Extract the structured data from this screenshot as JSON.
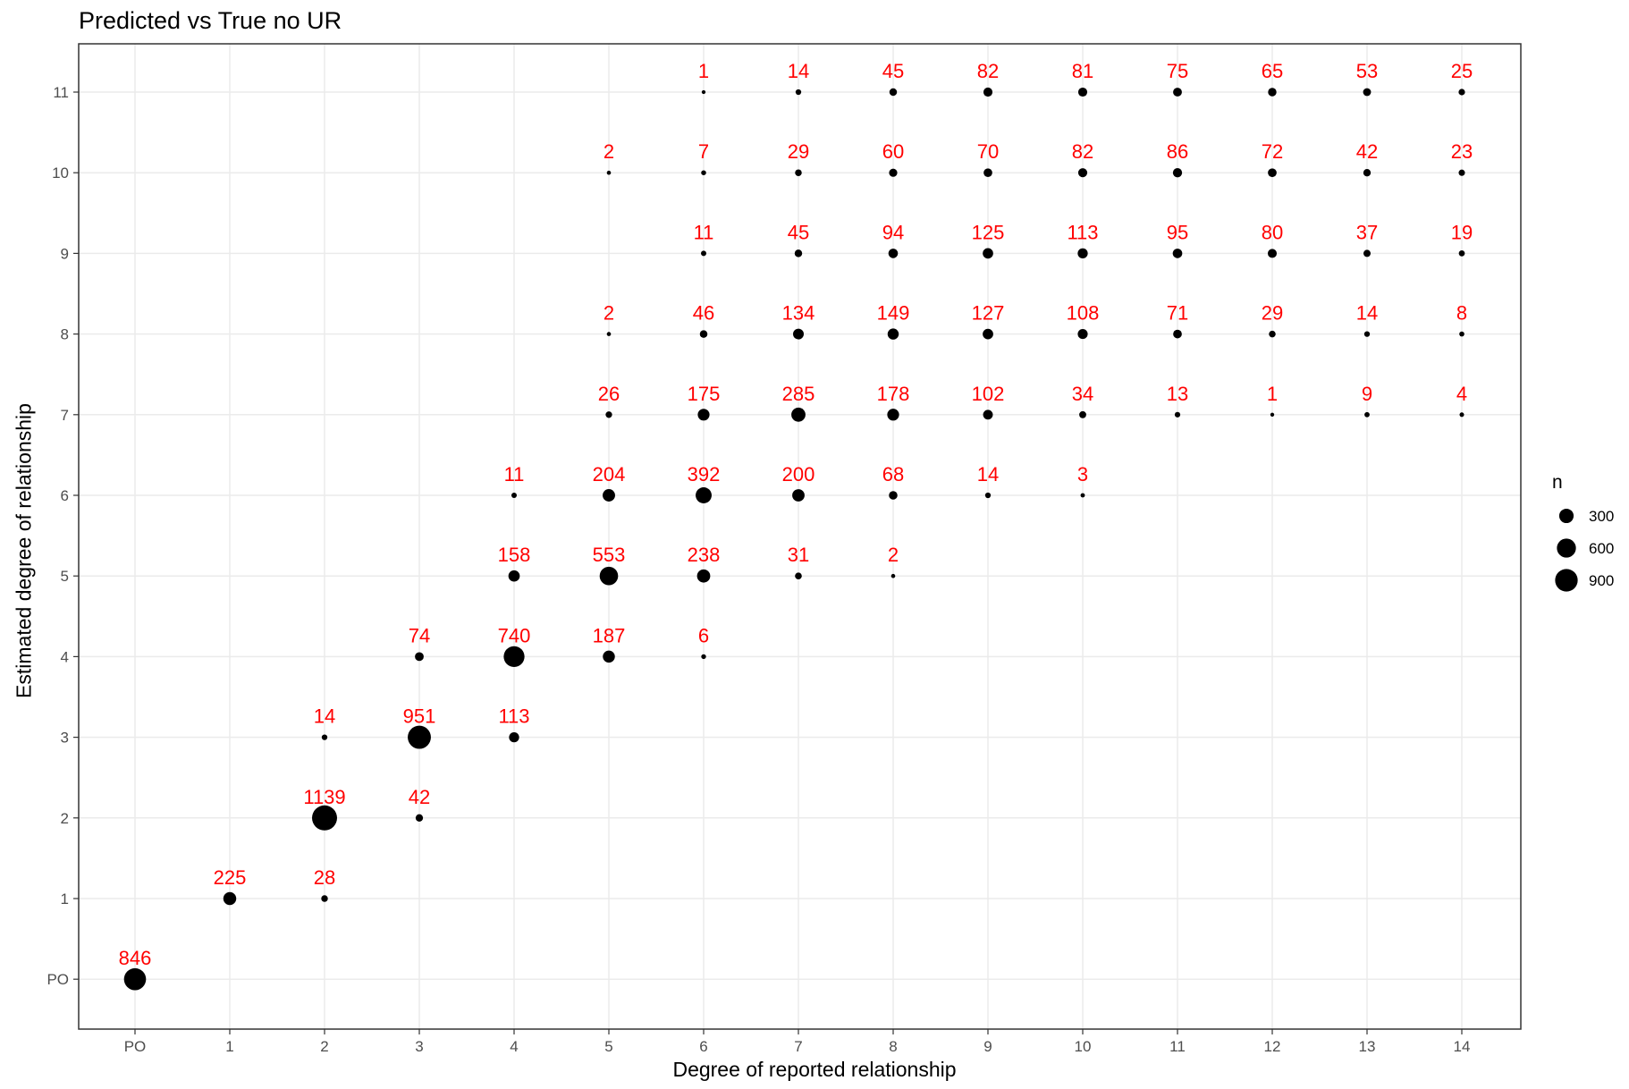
{
  "chart_data": {
    "type": "scatter",
    "title": "Predicted vs True no UR",
    "xlabel": "Degree of reported relationship",
    "ylabel": "Estimated degree of relationship",
    "x_categories": [
      "PO",
      "1",
      "2",
      "3",
      "4",
      "5",
      "6",
      "7",
      "8",
      "9",
      "10",
      "11",
      "12",
      "13",
      "14"
    ],
    "y_categories": [
      "PO",
      "1",
      "2",
      "3",
      "4",
      "5",
      "6",
      "7",
      "8",
      "9",
      "10",
      "11"
    ],
    "point_color": "#000000",
    "label_color": "#FF0000",
    "grid": true,
    "legend": {
      "title": "n",
      "position": "right",
      "entries": [
        {
          "value": 300,
          "label": "300"
        },
        {
          "value": 600,
          "label": "600"
        },
        {
          "value": 900,
          "label": "900"
        }
      ]
    },
    "points": [
      {
        "x": "PO",
        "y": "PO",
        "n": 846
      },
      {
        "x": "1",
        "y": "1",
        "n": 225
      },
      {
        "x": "2",
        "y": "1",
        "n": 28
      },
      {
        "x": "2",
        "y": "2",
        "n": 1139
      },
      {
        "x": "2",
        "y": "3",
        "n": 14
      },
      {
        "x": "3",
        "y": "2",
        "n": 42
      },
      {
        "x": "3",
        "y": "3",
        "n": 951
      },
      {
        "x": "3",
        "y": "4",
        "n": 74
      },
      {
        "x": "4",
        "y": "3",
        "n": 113
      },
      {
        "x": "4",
        "y": "4",
        "n": 740
      },
      {
        "x": "4",
        "y": "5",
        "n": 158
      },
      {
        "x": "4",
        "y": "6",
        "n": 11
      },
      {
        "x": "5",
        "y": "4",
        "n": 187
      },
      {
        "x": "5",
        "y": "5",
        "n": 553
      },
      {
        "x": "5",
        "y": "6",
        "n": 204
      },
      {
        "x": "5",
        "y": "7",
        "n": 26
      },
      {
        "x": "5",
        "y": "8",
        "n": 2
      },
      {
        "x": "5",
        "y": "10",
        "n": 2
      },
      {
        "x": "6",
        "y": "4",
        "n": 6
      },
      {
        "x": "6",
        "y": "5",
        "n": 238
      },
      {
        "x": "6",
        "y": "6",
        "n": 392
      },
      {
        "x": "6",
        "y": "7",
        "n": 175
      },
      {
        "x": "6",
        "y": "8",
        "n": 46
      },
      {
        "x": "6",
        "y": "9",
        "n": 11
      },
      {
        "x": "6",
        "y": "10",
        "n": 7
      },
      {
        "x": "6",
        "y": "11",
        "n": 1
      },
      {
        "x": "7",
        "y": "5",
        "n": 31
      },
      {
        "x": "7",
        "y": "6",
        "n": 200
      },
      {
        "x": "7",
        "y": "7",
        "n": 285
      },
      {
        "x": "7",
        "y": "8",
        "n": 134
      },
      {
        "x": "7",
        "y": "9",
        "n": 45
      },
      {
        "x": "7",
        "y": "10",
        "n": 29
      },
      {
        "x": "7",
        "y": "11",
        "n": 14
      },
      {
        "x": "8",
        "y": "5",
        "n": 2
      },
      {
        "x": "8",
        "y": "6",
        "n": 68
      },
      {
        "x": "8",
        "y": "7",
        "n": 178
      },
      {
        "x": "8",
        "y": "8",
        "n": 149
      },
      {
        "x": "8",
        "y": "9",
        "n": 94
      },
      {
        "x": "8",
        "y": "10",
        "n": 60
      },
      {
        "x": "8",
        "y": "11",
        "n": 45
      },
      {
        "x": "9",
        "y": "6",
        "n": 14
      },
      {
        "x": "9",
        "y": "7",
        "n": 102
      },
      {
        "x": "9",
        "y": "8",
        "n": 127
      },
      {
        "x": "9",
        "y": "9",
        "n": 125
      },
      {
        "x": "9",
        "y": "10",
        "n": 70
      },
      {
        "x": "9",
        "y": "11",
        "n": 82
      },
      {
        "x": "10",
        "y": "6",
        "n": 3
      },
      {
        "x": "10",
        "y": "7",
        "n": 34
      },
      {
        "x": "10",
        "y": "8",
        "n": 108
      },
      {
        "x": "10",
        "y": "9",
        "n": 113
      },
      {
        "x": "10",
        "y": "10",
        "n": 82
      },
      {
        "x": "10",
        "y": "11",
        "n": 81
      },
      {
        "x": "11",
        "y": "7",
        "n": 13
      },
      {
        "x": "11",
        "y": "8",
        "n": 71
      },
      {
        "x": "11",
        "y": "9",
        "n": 95
      },
      {
        "x": "11",
        "y": "10",
        "n": 86
      },
      {
        "x": "11",
        "y": "11",
        "n": 75
      },
      {
        "x": "12",
        "y": "7",
        "n": 1
      },
      {
        "x": "12",
        "y": "8",
        "n": 29
      },
      {
        "x": "12",
        "y": "9",
        "n": 80
      },
      {
        "x": "12",
        "y": "10",
        "n": 72
      },
      {
        "x": "12",
        "y": "11",
        "n": 65
      },
      {
        "x": "13",
        "y": "7",
        "n": 9
      },
      {
        "x": "13",
        "y": "8",
        "n": 14
      },
      {
        "x": "13",
        "y": "9",
        "n": 37
      },
      {
        "x": "13",
        "y": "10",
        "n": 42
      },
      {
        "x": "13",
        "y": "11",
        "n": 53
      },
      {
        "x": "14",
        "y": "7",
        "n": 4
      },
      {
        "x": "14",
        "y": "8",
        "n": 8
      },
      {
        "x": "14",
        "y": "9",
        "n": 19
      },
      {
        "x": "14",
        "y": "10",
        "n": 23
      },
      {
        "x": "14",
        "y": "11",
        "n": 25
      }
    ]
  }
}
